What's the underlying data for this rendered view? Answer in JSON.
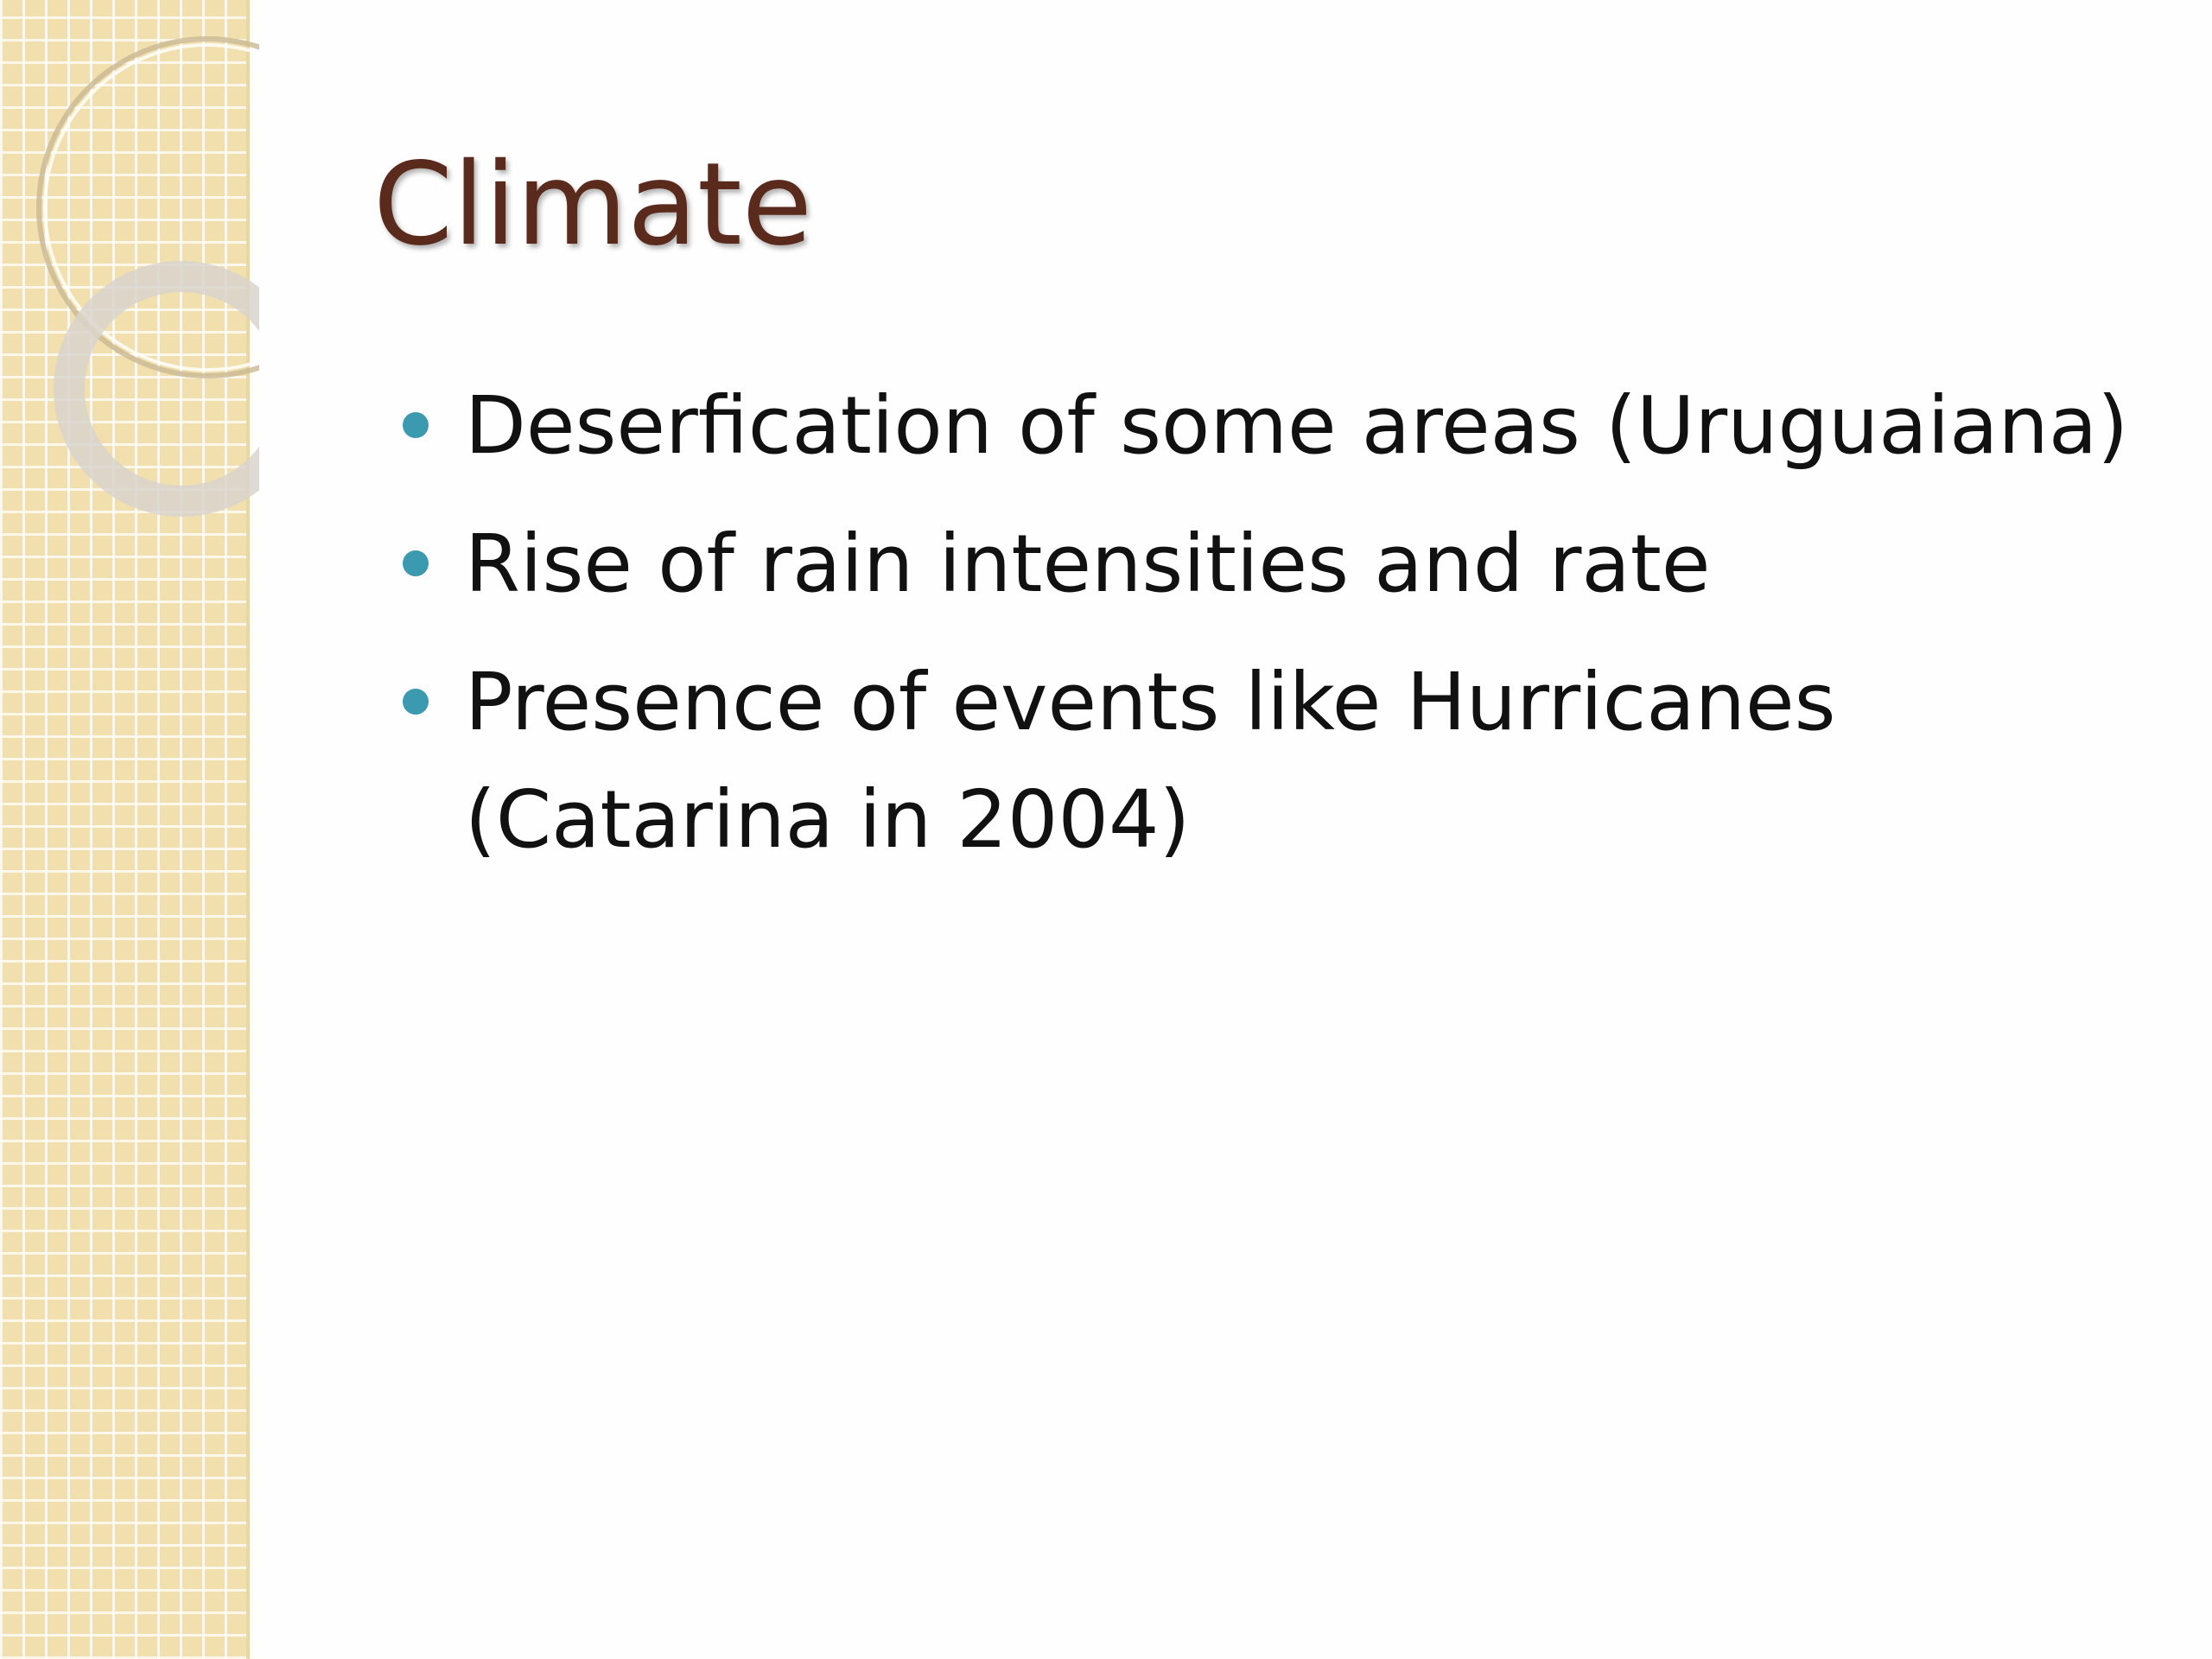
{
  "slide": {
    "title": "Climate",
    "bullets": [
      "Deserfication of some areas (Uruguaiana)",
      "Rise of rain intensities and rate",
      "Presence of events like Hurricanes (Catarina in 2004)"
    ]
  }
}
